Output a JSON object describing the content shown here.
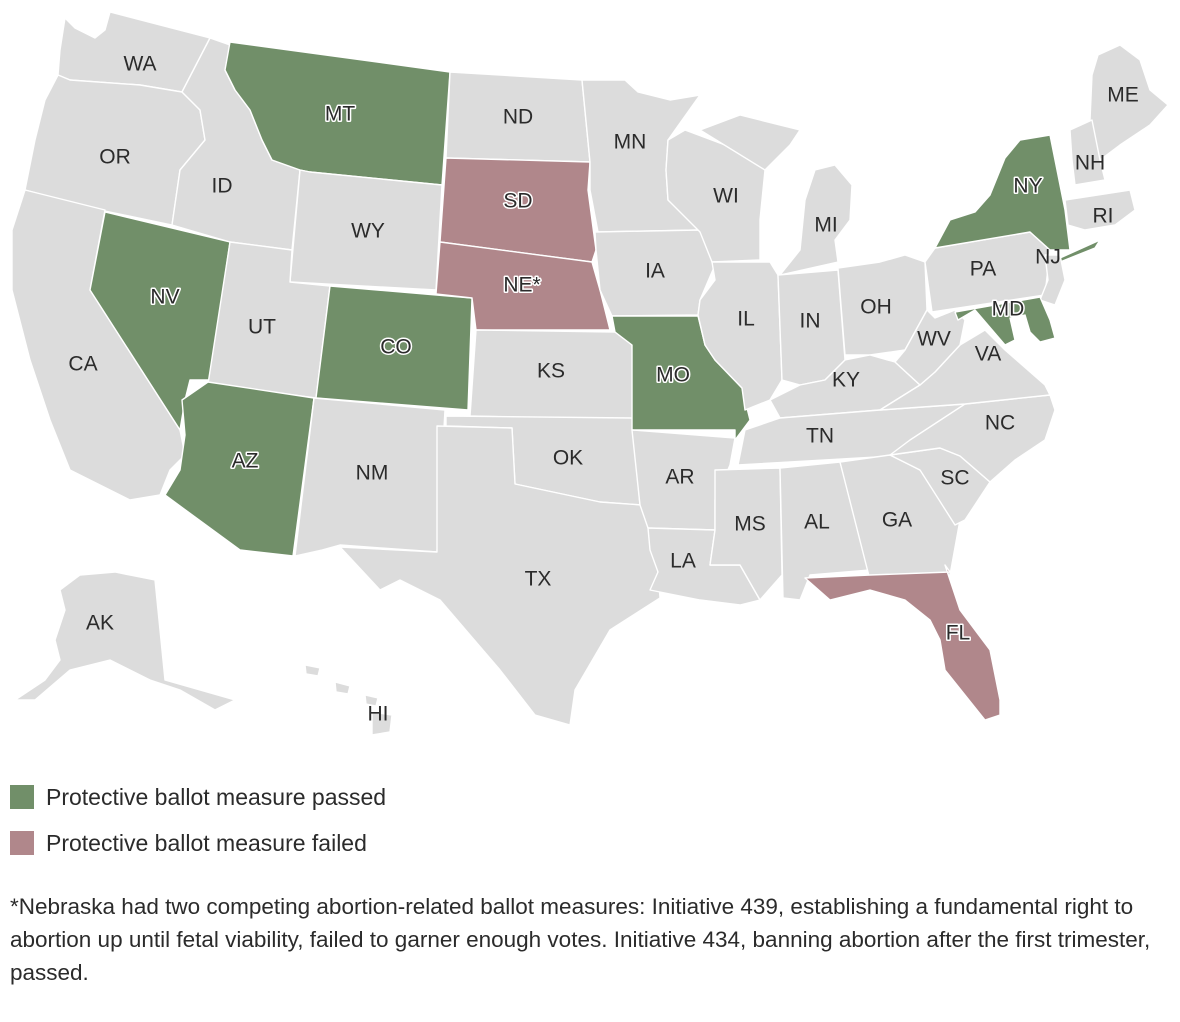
{
  "colors": {
    "none": "#dcdcdc",
    "passed": "#718f69",
    "failed": "#b0878b"
  },
  "states": [
    {
      "abbr": "WA",
      "status": "none"
    },
    {
      "abbr": "OR",
      "status": "none"
    },
    {
      "abbr": "CA",
      "status": "none"
    },
    {
      "abbr": "ID",
      "status": "none"
    },
    {
      "abbr": "NV",
      "status": "passed"
    },
    {
      "abbr": "MT",
      "status": "passed"
    },
    {
      "abbr": "WY",
      "status": "none"
    },
    {
      "abbr": "UT",
      "status": "none"
    },
    {
      "abbr": "AZ",
      "status": "passed"
    },
    {
      "abbr": "CO",
      "status": "passed"
    },
    {
      "abbr": "NM",
      "status": "none"
    },
    {
      "abbr": "ND",
      "status": "none"
    },
    {
      "abbr": "SD",
      "status": "failed"
    },
    {
      "abbr": "NE*",
      "status": "failed"
    },
    {
      "abbr": "KS",
      "status": "none"
    },
    {
      "abbr": "OK",
      "status": "none"
    },
    {
      "abbr": "TX",
      "status": "none"
    },
    {
      "abbr": "MN",
      "status": "none"
    },
    {
      "abbr": "IA",
      "status": "none"
    },
    {
      "abbr": "MO",
      "status": "passed"
    },
    {
      "abbr": "AR",
      "status": "none"
    },
    {
      "abbr": "LA",
      "status": "none"
    },
    {
      "abbr": "WI",
      "status": "none"
    },
    {
      "abbr": "IL",
      "status": "none"
    },
    {
      "abbr": "MI",
      "status": "none"
    },
    {
      "abbr": "IN",
      "status": "none"
    },
    {
      "abbr": "OH",
      "status": "none"
    },
    {
      "abbr": "KY",
      "status": "none"
    },
    {
      "abbr": "TN",
      "status": "none"
    },
    {
      "abbr": "MS",
      "status": "none"
    },
    {
      "abbr": "AL",
      "status": "none"
    },
    {
      "abbr": "GA",
      "status": "none"
    },
    {
      "abbr": "FL",
      "status": "failed"
    },
    {
      "abbr": "SC",
      "status": "none"
    },
    {
      "abbr": "NC",
      "status": "none"
    },
    {
      "abbr": "VA",
      "status": "none"
    },
    {
      "abbr": "WV",
      "status": "none"
    },
    {
      "abbr": "PA",
      "status": "none"
    },
    {
      "abbr": "NY",
      "status": "passed"
    },
    {
      "abbr": "NJ",
      "status": "none"
    },
    {
      "abbr": "MD",
      "status": "passed"
    },
    {
      "abbr": "ME",
      "status": "none"
    },
    {
      "abbr": "NH",
      "status": "none"
    },
    {
      "abbr": "RI",
      "status": "none"
    },
    {
      "abbr": "AK",
      "status": "none"
    },
    {
      "abbr": "HI",
      "status": "none"
    }
  ],
  "legend": [
    {
      "status": "passed",
      "label": "Protective ballot measure passed"
    },
    {
      "status": "failed",
      "label": "Protective ballot measure failed"
    }
  ],
  "footnote": "*Nebraska had two competing abortion-related ballot measures: Initiative 439, establishing a fundamental right to abortion up until fetal viability, failed to garner enough votes. Initiative 434, banning abortion after the first trimester, passed."
}
